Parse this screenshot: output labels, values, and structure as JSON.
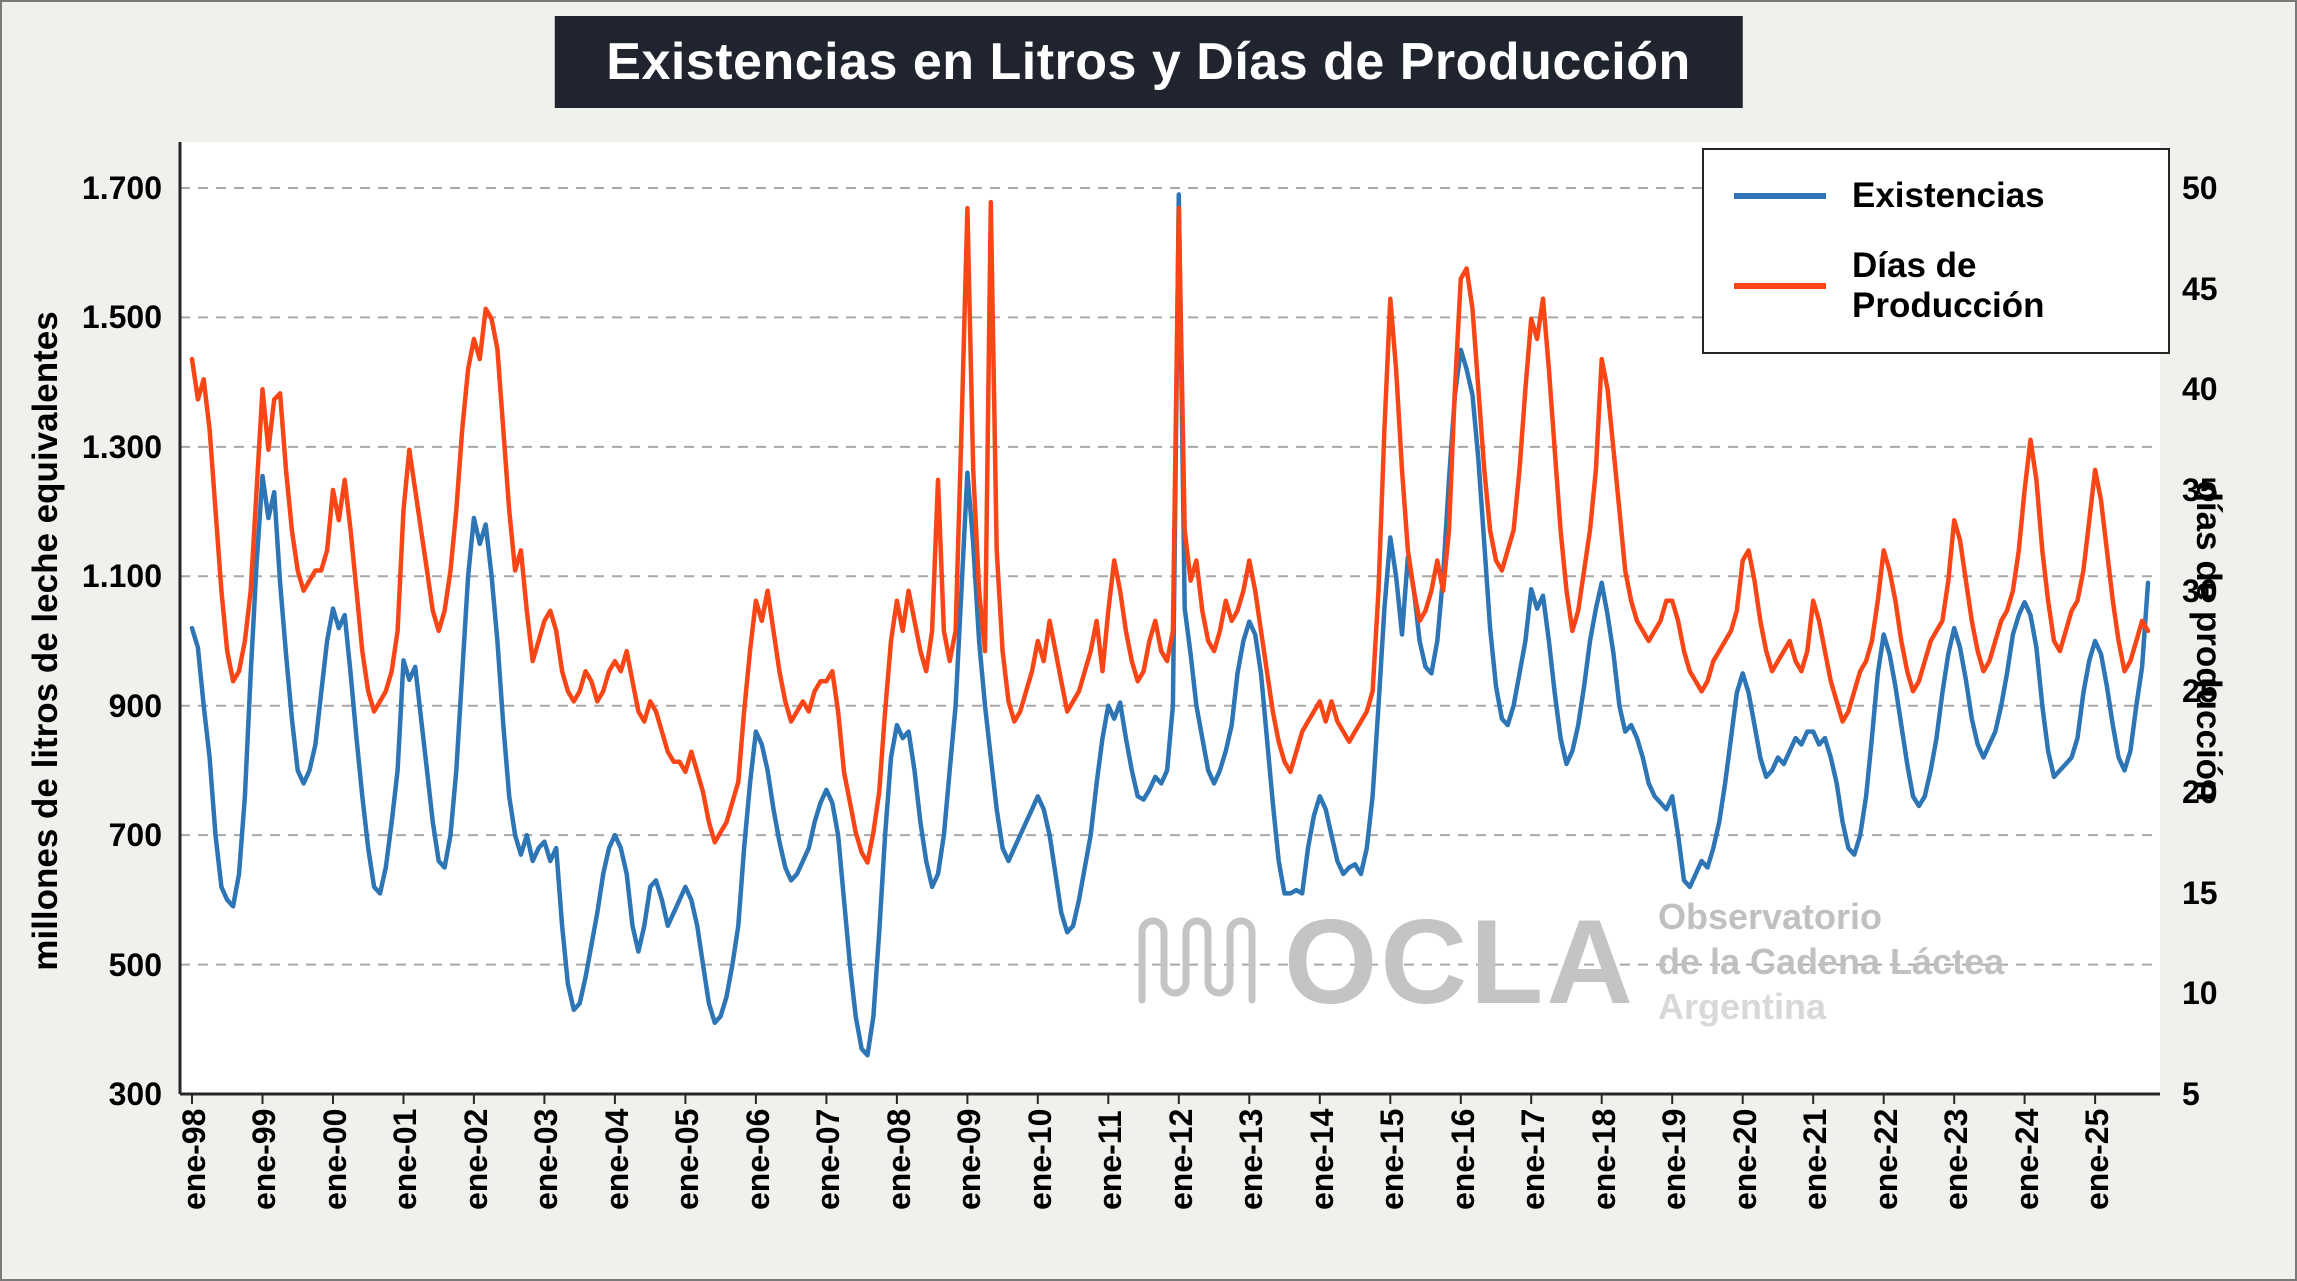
{
  "title": "Existencias en Litros y Días de Producción",
  "legend": [
    {
      "label": "Existencias",
      "color": "#2e75b6"
    },
    {
      "label": "Días de Producción",
      "color": "#fa4616"
    }
  ],
  "watermark": {
    "acronym": "OCLA",
    "lines": [
      "Observatorio",
      "de la Cadena Láctea",
      "Argentina"
    ]
  },
  "chart_data": {
    "type": "line",
    "grid": "dashed horizontal",
    "legend_position": "top-right",
    "x_unit": "month",
    "x_tick_every": 12,
    "x_tick_labels": [
      "ene-98",
      "ene-99",
      "ene-00",
      "ene-01",
      "ene-02",
      "ene-03",
      "ene-04",
      "ene-05",
      "ene-06",
      "ene-07",
      "ene-08",
      "ene-09",
      "ene-10",
      "ene-11",
      "ene-12",
      "ene-13",
      "ene-14",
      "ene-15",
      "ene-16",
      "ene-17",
      "ene-18",
      "ene-19",
      "ene-20",
      "ene-21",
      "ene-22",
      "ene-23",
      "ene-24",
      "ene-25"
    ],
    "left_axis": {
      "label": "millones de litros de leche equivalentes",
      "min": 300,
      "max": 1700,
      "tick_values": [
        300,
        500,
        700,
        900,
        1100,
        1300,
        1500,
        1700
      ],
      "tick_labels": [
        "300",
        "500",
        "700",
        "900",
        "1.100",
        "1.300",
        "1.500",
        "1.700"
      ]
    },
    "right_axis": {
      "label": "días de producción",
      "min": 5,
      "max": 50,
      "tick_values": [
        5,
        10,
        15,
        20,
        25,
        30,
        35,
        40,
        45,
        50
      ]
    },
    "series": [
      {
        "name": "Existencias",
        "axis": "left",
        "color": "#2e75b6",
        "values": [
          1020,
          990,
          900,
          820,
          700,
          620,
          600,
          590,
          640,
          760,
          950,
          1120,
          1255,
          1190,
          1230,
          1090,
          980,
          880,
          800,
          780,
          800,
          840,
          920,
          1000,
          1050,
          1020,
          1040,
          950,
          850,
          760,
          680,
          620,
          610,
          650,
          720,
          800,
          970,
          940,
          960,
          880,
          800,
          720,
          660,
          650,
          700,
          800,
          950,
          1100,
          1190,
          1150,
          1180,
          1100,
          1000,
          870,
          760,
          700,
          670,
          700,
          660,
          680,
          690,
          660,
          680,
          560,
          470,
          430,
          440,
          480,
          530,
          580,
          640,
          680,
          700,
          680,
          640,
          560,
          520,
          560,
          620,
          630,
          600,
          560,
          580,
          600,
          620,
          600,
          560,
          500,
          440,
          410,
          420,
          450,
          500,
          560,
          680,
          780,
          860,
          840,
          800,
          740,
          690,
          650,
          630,
          640,
          660,
          680,
          720,
          750,
          770,
          750,
          700,
          600,
          500,
          420,
          370,
          360,
          420,
          550,
          700,
          820,
          870,
          850,
          860,
          800,
          720,
          660,
          620,
          640,
          700,
          800,
          900,
          1080,
          1260,
          1150,
          1000,
          900,
          820,
          740,
          680,
          660,
          680,
          700,
          720,
          740,
          760,
          740,
          700,
          640,
          580,
          550,
          560,
          600,
          650,
          700,
          780,
          850,
          900,
          880,
          905,
          850,
          800,
          760,
          755,
          770,
          790,
          780,
          800,
          900,
          1690,
          1050,
          980,
          900,
          850,
          800,
          780,
          800,
          830,
          870,
          950,
          1000,
          1030,
          1010,
          950,
          850,
          750,
          660,
          610,
          610,
          615,
          610,
          680,
          730,
          760,
          740,
          700,
          660,
          640,
          650,
          655,
          640,
          680,
          760,
          900,
          1050,
          1160,
          1100,
          1010,
          1130,
          1080,
          1000,
          960,
          950,
          1000,
          1100,
          1250,
          1380,
          1450,
          1420,
          1380,
          1280,
          1150,
          1020,
          930,
          880,
          870,
          900,
          950,
          1000,
          1080,
          1050,
          1070,
          1000,
          920,
          850,
          810,
          830,
          870,
          930,
          1000,
          1050,
          1090,
          1040,
          980,
          900,
          860,
          870,
          850,
          820,
          780,
          760,
          750,
          740,
          760,
          700,
          630,
          620,
          640,
          660,
          650,
          680,
          720,
          780,
          850,
          920,
          950,
          920,
          870,
          820,
          790,
          800,
          820,
          810,
          830,
          850,
          840,
          860,
          860,
          840,
          850,
          820,
          780,
          720,
          680,
          670,
          700,
          760,
          850,
          950,
          1010,
          980,
          930,
          870,
          810,
          760,
          745,
          760,
          800,
          850,
          920,
          980,
          1020,
          990,
          940,
          880,
          840,
          820,
          840,
          860,
          900,
          950,
          1010,
          1040,
          1060,
          1040,
          990,
          900,
          830,
          790,
          800,
          810,
          820,
          850,
          920,
          970,
          1000,
          980,
          930,
          870,
          820,
          800,
          830,
          900,
          960,
          1090
        ]
      },
      {
        "name": "Días de Producción",
        "axis": "right",
        "color": "#fa4616",
        "values": [
          41.5,
          39.5,
          40.5,
          38,
          34,
          30,
          27,
          25.5,
          26,
          27.5,
          30,
          35,
          40,
          37,
          39.5,
          39.8,
          36,
          33,
          31,
          30,
          30.5,
          31,
          31,
          32,
          35,
          33.5,
          35.5,
          33,
          30,
          27,
          25,
          24,
          24.5,
          25,
          26,
          28,
          34,
          37,
          35,
          33,
          31,
          29,
          28,
          29,
          31,
          34,
          38,
          41,
          42.5,
          41.5,
          44,
          43.5,
          42,
          38,
          34,
          31,
          32,
          29,
          26.5,
          27.5,
          28.5,
          29,
          28,
          26,
          25,
          24.5,
          25,
          26,
          25.5,
          24.5,
          25,
          26,
          26.5,
          26,
          27,
          25.5,
          24,
          23.5,
          24.5,
          24,
          23,
          22,
          21.5,
          21.5,
          21,
          22,
          21,
          20,
          18.5,
          17.5,
          18,
          18.5,
          19.5,
          20.5,
          24,
          27,
          29.5,
          28.5,
          30,
          28,
          26,
          24.5,
          23.5,
          24,
          24.5,
          24,
          25,
          25.5,
          25.5,
          26,
          24,
          21,
          19.5,
          18,
          17,
          16.5,
          18,
          20,
          24,
          27.5,
          29.5,
          28,
          30,
          28.5,
          27,
          26,
          28,
          35.5,
          28,
          26.5,
          28,
          38,
          49,
          36,
          30,
          27,
          49.3,
          32,
          27,
          24.5,
          23.5,
          24,
          25,
          26,
          27.5,
          26.5,
          28.5,
          27,
          25.5,
          24,
          24.5,
          25,
          26,
          27,
          28.5,
          26,
          29,
          31.5,
          30,
          28,
          26.5,
          25.5,
          26,
          27.5,
          28.5,
          27,
          26.5,
          28,
          49,
          33,
          30.5,
          31.5,
          29,
          27.5,
          27,
          28,
          29.5,
          28.5,
          29,
          30,
          31.5,
          30,
          28,
          26,
          24,
          22.5,
          21.5,
          21,
          22,
          23,
          23.5,
          24,
          24.5,
          23.5,
          24.5,
          23.5,
          23,
          22.5,
          23,
          23.5,
          24,
          25,
          30,
          38,
          44.5,
          41,
          36,
          32,
          30,
          28.5,
          29,
          30,
          31.5,
          30,
          33,
          40,
          45.5,
          46,
          44,
          40,
          36,
          33,
          31.5,
          31,
          32,
          33,
          36,
          40,
          43.5,
          42.5,
          44.5,
          41,
          37,
          33,
          30,
          28,
          29,
          31,
          33,
          36,
          41.5,
          40,
          37,
          34,
          31,
          29.5,
          28.5,
          28,
          27.5,
          28,
          28.5,
          29.5,
          29.5,
          28.5,
          27,
          26,
          25.5,
          25,
          25.5,
          26.5,
          27,
          27.5,
          28,
          29,
          31.5,
          32,
          30.5,
          28.5,
          27,
          26,
          26.5,
          27,
          27.5,
          26.5,
          26,
          27,
          29.5,
          28.5,
          27,
          25.5,
          24.5,
          23.5,
          24,
          25,
          26,
          26.5,
          27.5,
          29.5,
          32,
          31,
          29.5,
          27.5,
          26,
          25,
          25.5,
          26.5,
          27.5,
          28,
          28.5,
          30.5,
          33.5,
          32.5,
          30.5,
          28.5,
          27,
          26,
          26.5,
          27.5,
          28.5,
          29,
          30,
          32,
          35,
          37.5,
          35.5,
          32,
          29.5,
          27.5,
          27,
          28,
          29,
          29.5,
          31,
          33.5,
          36,
          34.5,
          32,
          29.5,
          27.5,
          26,
          26.5,
          27.5,
          28.5,
          28
        ]
      }
    ]
  }
}
